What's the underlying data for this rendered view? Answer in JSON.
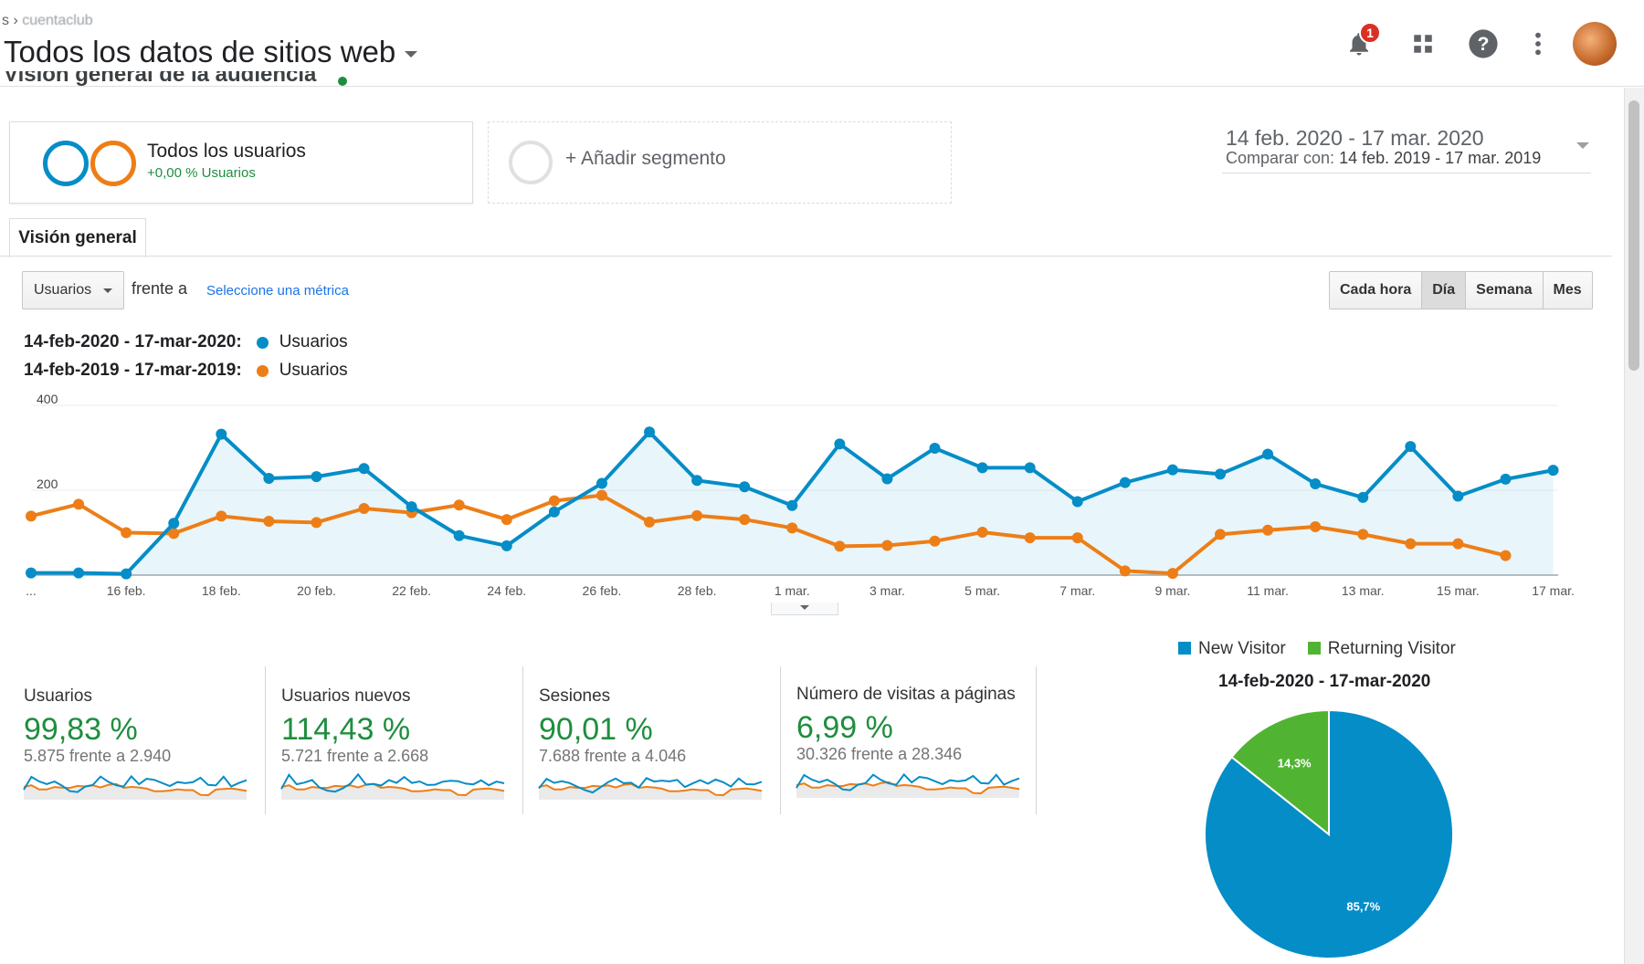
{
  "header": {
    "breadcrumb_prefix": "s ›",
    "breadcrumb_account": "cuentaclub",
    "view_title": "Todos los datos de sitios web",
    "notification_count": "1",
    "section_title": "Visión general de la audiencia"
  },
  "segments": {
    "all_users_label": "Todos los usuarios",
    "all_users_sub": "+0,00 % Usuarios",
    "add_segment_label": "+ Añadir segmento"
  },
  "date_range": {
    "main": "14 feb. 2020 - 17 mar. 2020",
    "compare_prefix": "Comparar con:",
    "compare_range": "14 feb. 2019 - 17 mar. 2019"
  },
  "tab_label": "Visión general",
  "metric_selector": {
    "value": "Usuarios",
    "vs_text": "frente a",
    "select_link": "Seleccione una métrica"
  },
  "granularity": [
    "Cada hora",
    "Día",
    "Semana",
    "Mes"
  ],
  "granularity_active": "Día",
  "legend": [
    {
      "range": "14-feb-2020 - 17-mar-2020:",
      "metric": "Usuarios",
      "color": "#058dc7"
    },
    {
      "range": "14-feb-2019 - 17-mar-2019:",
      "metric": "Usuarios",
      "color": "#ed7e17"
    }
  ],
  "chart_data": {
    "type": "line",
    "title": "",
    "xlabel": "",
    "ylabel": "",
    "ylim": [
      0,
      400
    ],
    "yticks": [
      "400",
      "200"
    ],
    "x_tick_labels": [
      "...",
      "16 feb.",
      "18 feb.",
      "20 feb.",
      "22 feb.",
      "24 feb.",
      "26 feb.",
      "28 feb.",
      "1 mar.",
      "3 mar.",
      "5 mar.",
      "7 mar.",
      "9 mar.",
      "11 mar.",
      "13 mar.",
      "15 mar.",
      "17 mar."
    ],
    "series": [
      {
        "name": "14-feb-2020 - 17-mar-2020",
        "color": "#058dc7",
        "values": [
          5,
          5,
          3,
          122,
          332,
          228,
          232,
          251,
          161,
          93,
          69,
          149,
          216,
          337,
          223,
          208,
          164,
          309,
          227,
          299,
          253,
          253,
          173,
          218,
          248,
          238,
          285,
          215,
          183,
          303,
          186,
          226,
          247
        ]
      },
      {
        "name": "14-feb-2019 - 17-mar-2019",
        "color": "#ed7e17",
        "values": [
          139,
          167,
          100,
          98,
          139,
          127,
          124,
          157,
          147,
          165,
          131,
          175,
          188,
          125,
          140,
          131,
          111,
          68,
          70,
          80,
          101,
          88,
          88,
          10,
          4,
          96,
          106,
          114,
          96,
          74,
          74,
          46
        ]
      }
    ]
  },
  "metrics": [
    {
      "label": "Usuarios",
      "value": "99,83 %",
      "compare": "5.875 frente a 2.940"
    },
    {
      "label": "Usuarios nuevos",
      "value": "114,43 %",
      "compare": "5.721 frente a 2.668"
    },
    {
      "label": "Sesiones",
      "value": "90,01 %",
      "compare": "7.688 frente a 4.046"
    },
    {
      "label": "Número de visitas a páginas",
      "value": "6,99 %",
      "compare": "30.326 frente a 28.346"
    }
  ],
  "pie": {
    "title": "14-feb-2020 - 17-mar-2020",
    "slices": [
      {
        "name": "New Visitor",
        "value": 85.7,
        "label": "85,7%",
        "color": "#058dc7"
      },
      {
        "name": "Returning Visitor",
        "value": 14.3,
        "label": "14,3%",
        "color": "#50b432"
      }
    ]
  }
}
